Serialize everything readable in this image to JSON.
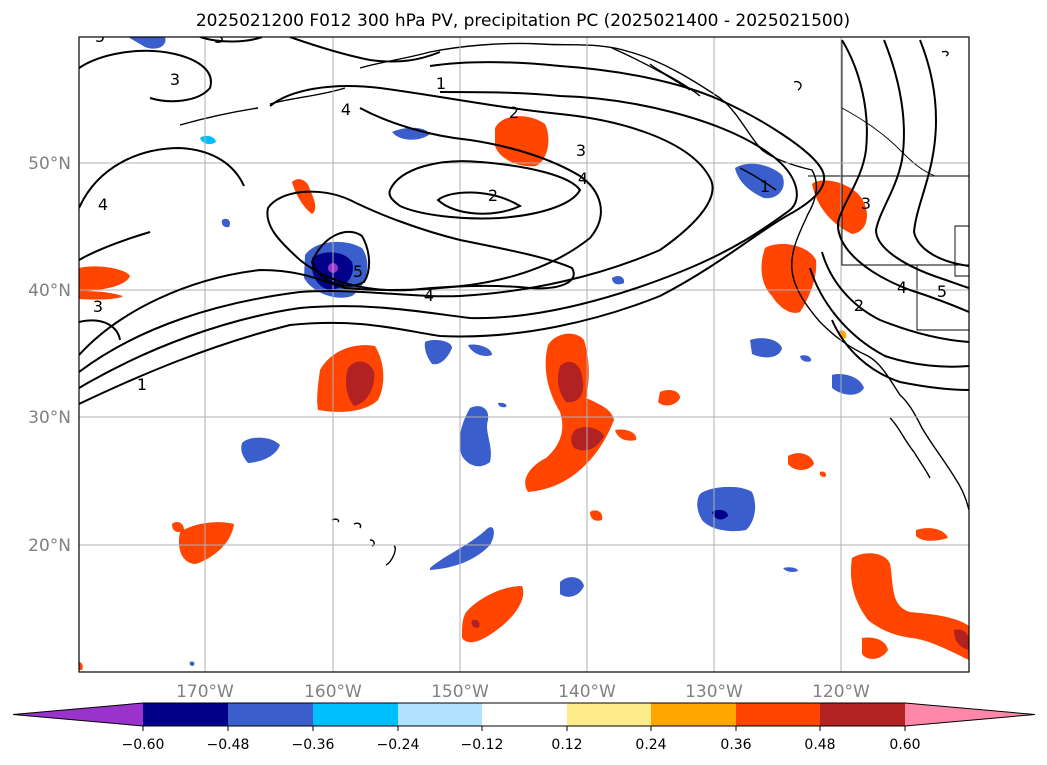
{
  "title": "2025021200 F012 300 hPa PV, precipitation PC (2025021400 - 2025021500)",
  "map": {
    "lon_range": [
      -180,
      -110
    ],
    "lat_range": [
      10,
      60
    ],
    "lat_labels": [
      "50°N",
      "40°N",
      "30°N",
      "20°N"
    ],
    "lon_labels": [
      "170°W",
      "160°W",
      "150°W",
      "140°W",
      "130°W",
      "120°W"
    ],
    "pv_contour_labels": [
      "1",
      "2",
      "3",
      "4",
      "5"
    ]
  },
  "colorbar": {
    "ticks": [
      "−0.60",
      "−0.48",
      "−0.36",
      "−0.24",
      "−0.12",
      "0.12",
      "0.24",
      "0.36",
      "0.48",
      "0.60"
    ],
    "levels": [
      -0.6,
      -0.48,
      -0.36,
      -0.24,
      -0.12,
      0.12,
      0.24,
      0.36,
      0.48,
      0.6
    ],
    "colors": [
      "#9a33cc",
      "#00008b",
      "#3a5fcd",
      "#00bfff",
      "#b0e2ff",
      "#ffffff",
      "#ffec8b",
      "#ffa500",
      "#ff4500",
      "#b22222",
      "#ff88aa"
    ]
  }
}
